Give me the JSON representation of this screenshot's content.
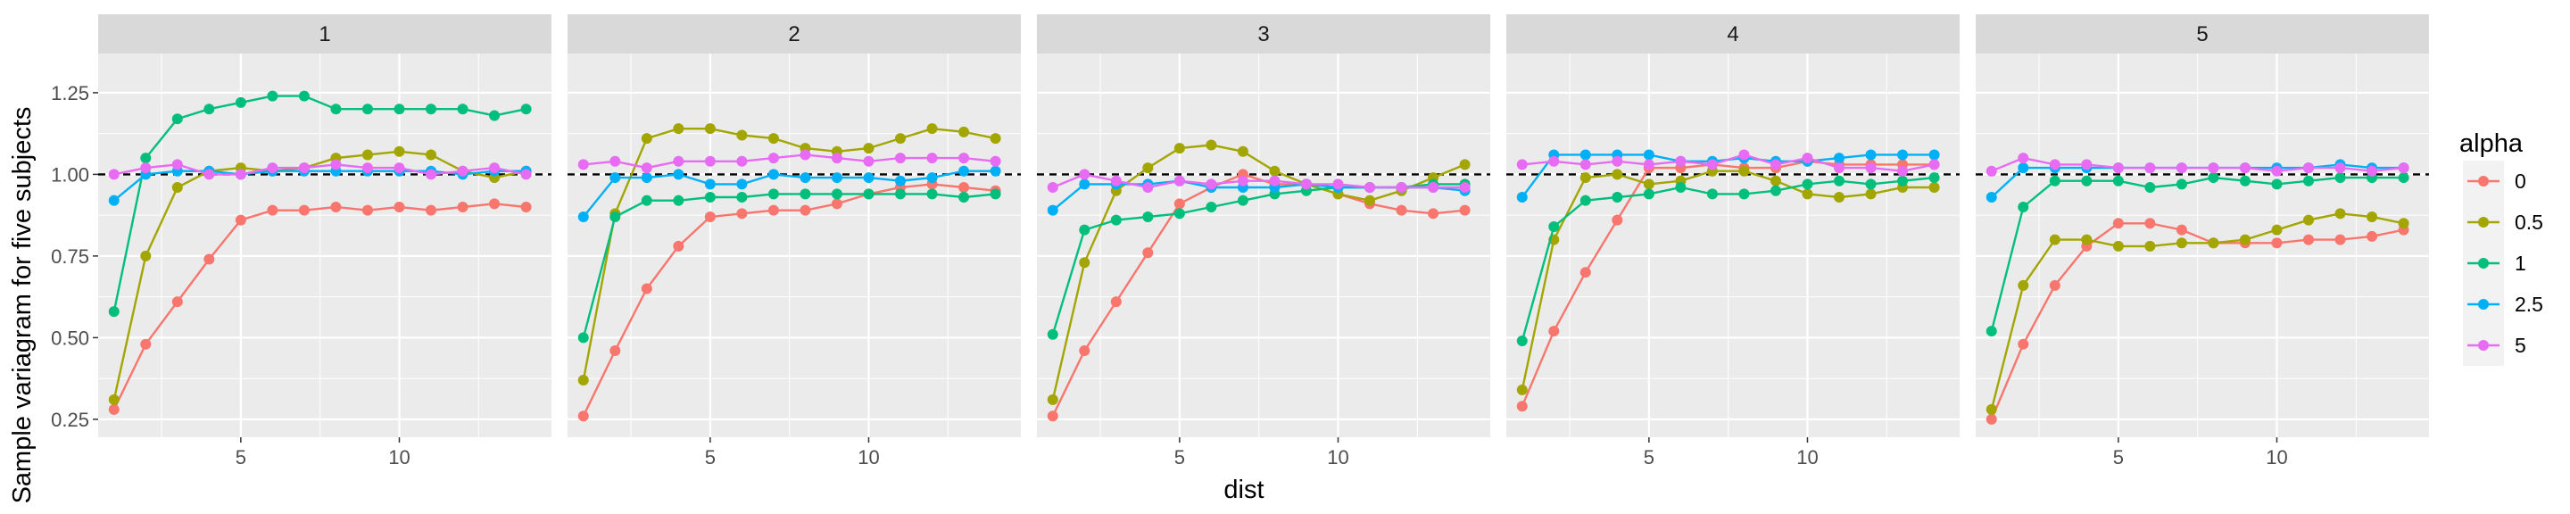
{
  "chart_data": {
    "type": "line",
    "ylabel": "Sample variagram for five subjects",
    "xlabel": "dist",
    "xlim": [
      0.5,
      14.8
    ],
    "ylim": [
      0.195,
      1.37
    ],
    "x_ticks": [
      5,
      10
    ],
    "y_ticks": [
      0.25,
      0.5,
      0.75,
      1.0
    ],
    "y_tick_labels": [
      "0.25",
      "0.50",
      "0.75",
      "1.00",
      "1.25"
    ],
    "y_ticks_full": [
      0.25,
      0.5,
      0.75,
      1.0,
      1.25
    ],
    "reference_line": {
      "y": 1.0,
      "style": "dashed"
    },
    "legend": {
      "title": "alpha",
      "position": "right"
    },
    "series_order": [
      "0",
      "0.5",
      "1",
      "2.5",
      "5"
    ],
    "colors": {
      "0": "#F8766D",
      "0.5": "#A3A500",
      "1": "#00BF7D",
      "2.5": "#00B0F6",
      "5": "#E76BF3"
    },
    "x": [
      1,
      2,
      3,
      4,
      5,
      6,
      7,
      8,
      9,
      10,
      11,
      12,
      13,
      14
    ],
    "panels": [
      {
        "label": "1",
        "series": [
          {
            "name": "0",
            "values": [
              0.28,
              0.48,
              0.61,
              0.74,
              0.86,
              0.89,
              0.89,
              0.9,
              0.89,
              0.9,
              0.89,
              0.9,
              0.91,
              0.9
            ]
          },
          {
            "name": "0.5",
            "values": [
              0.31,
              0.75,
              0.96,
              1.01,
              1.02,
              1.01,
              1.02,
              1.05,
              1.06,
              1.07,
              1.06,
              1.01,
              0.99,
              1.01
            ]
          },
          {
            "name": "1",
            "values": [
              0.58,
              1.05,
              1.17,
              1.2,
              1.22,
              1.24,
              1.24,
              1.2,
              1.2,
              1.2,
              1.2,
              1.2,
              1.18,
              1.2
            ]
          },
          {
            "name": "2.5",
            "values": [
              0.92,
              1.0,
              1.01,
              1.01,
              1.0,
              1.01,
              1.01,
              1.01,
              1.01,
              1.01,
              1.01,
              1.0,
              1.01,
              1.01
            ]
          },
          {
            "name": "5",
            "values": [
              1.0,
              1.02,
              1.03,
              1.0,
              1.0,
              1.02,
              1.02,
              1.03,
              1.02,
              1.02,
              1.0,
              1.01,
              1.02,
              1.0
            ]
          }
        ]
      },
      {
        "label": "2",
        "series": [
          {
            "name": "0",
            "values": [
              0.26,
              0.46,
              0.65,
              0.78,
              0.87,
              0.88,
              0.89,
              0.89,
              0.91,
              0.94,
              0.96,
              0.97,
              0.96,
              0.95
            ]
          },
          {
            "name": "0.5",
            "values": [
              0.37,
              0.88,
              1.11,
              1.14,
              1.14,
              1.12,
              1.11,
              1.08,
              1.07,
              1.08,
              1.11,
              1.14,
              1.13,
              1.11
            ]
          },
          {
            "name": "1",
            "values": [
              0.5,
              0.87,
              0.92,
              0.92,
              0.93,
              0.93,
              0.94,
              0.94,
              0.94,
              0.94,
              0.94,
              0.94,
              0.93,
              0.94
            ]
          },
          {
            "name": "2.5",
            "values": [
              0.87,
              0.99,
              0.99,
              1.0,
              0.97,
              0.97,
              1.0,
              0.99,
              0.99,
              0.99,
              0.98,
              0.99,
              1.01,
              1.01
            ]
          },
          {
            "name": "5",
            "values": [
              1.03,
              1.04,
              1.02,
              1.04,
              1.04,
              1.04,
              1.05,
              1.06,
              1.05,
              1.04,
              1.05,
              1.05,
              1.05,
              1.04
            ]
          }
        ]
      },
      {
        "label": "3",
        "series": [
          {
            "name": "0",
            "values": [
              0.26,
              0.46,
              0.61,
              0.76,
              0.91,
              0.96,
              1.0,
              0.97,
              0.97,
              0.94,
              0.91,
              0.89,
              0.88,
              0.89
            ]
          },
          {
            "name": "0.5",
            "values": [
              0.31,
              0.73,
              0.95,
              1.02,
              1.08,
              1.09,
              1.07,
              1.01,
              0.97,
              0.94,
              0.92,
              0.95,
              0.99,
              1.03
            ]
          },
          {
            "name": "1",
            "values": [
              0.51,
              0.83,
              0.86,
              0.87,
              0.88,
              0.9,
              0.92,
              0.94,
              0.95,
              0.96,
              0.96,
              0.96,
              0.97,
              0.97
            ]
          },
          {
            "name": "2.5",
            "values": [
              0.89,
              0.97,
              0.97,
              0.97,
              0.98,
              0.96,
              0.96,
              0.96,
              0.97,
              0.96,
              0.96,
              0.96,
              0.96,
              0.95
            ]
          },
          {
            "name": "5",
            "values": [
              0.96,
              1.0,
              0.98,
              0.96,
              0.98,
              0.97,
              0.98,
              0.98,
              0.97,
              0.97,
              0.96,
              0.96,
              0.96,
              0.96
            ]
          }
        ]
      },
      {
        "label": "4",
        "series": [
          {
            "name": "0",
            "values": [
              0.29,
              0.52,
              0.7,
              0.86,
              1.02,
              1.02,
              1.03,
              1.02,
              1.02,
              1.04,
              1.03,
              1.03,
              1.03,
              1.03
            ]
          },
          {
            "name": "0.5",
            "values": [
              0.34,
              0.8,
              0.99,
              1.0,
              0.97,
              0.98,
              1.01,
              1.01,
              0.98,
              0.94,
              0.93,
              0.94,
              0.96,
              0.96
            ]
          },
          {
            "name": "1",
            "values": [
              0.49,
              0.84,
              0.92,
              0.93,
              0.94,
              0.96,
              0.94,
              0.94,
              0.95,
              0.97,
              0.98,
              0.97,
              0.98,
              0.99
            ]
          },
          {
            "name": "2.5",
            "values": [
              0.93,
              1.06,
              1.06,
              1.06,
              1.06,
              1.04,
              1.04,
              1.05,
              1.04,
              1.04,
              1.05,
              1.06,
              1.06,
              1.06
            ]
          },
          {
            "name": "5",
            "values": [
              1.03,
              1.04,
              1.03,
              1.04,
              1.03,
              1.04,
              1.03,
              1.06,
              1.03,
              1.05,
              1.02,
              1.02,
              1.01,
              1.03
            ]
          }
        ]
      },
      {
        "label": "5",
        "series": [
          {
            "name": "0",
            "values": [
              0.25,
              0.48,
              0.66,
              0.78,
              0.85,
              0.85,
              0.83,
              0.79,
              0.79,
              0.79,
              0.8,
              0.8,
              0.81,
              0.83
            ]
          },
          {
            "name": "0.5",
            "values": [
              0.28,
              0.66,
              0.8,
              0.8,
              0.78,
              0.78,
              0.79,
              0.79,
              0.8,
              0.83,
              0.86,
              0.88,
              0.87,
              0.85
            ]
          },
          {
            "name": "1",
            "values": [
              0.52,
              0.9,
              0.98,
              0.98,
              0.98,
              0.96,
              0.97,
              0.99,
              0.98,
              0.97,
              0.98,
              0.99,
              0.99,
              0.99
            ]
          },
          {
            "name": "2.5",
            "values": [
              0.93,
              1.02,
              1.02,
              1.02,
              1.02,
              1.02,
              1.02,
              1.02,
              1.02,
              1.02,
              1.02,
              1.03,
              1.02,
              1.02
            ]
          },
          {
            "name": "5",
            "values": [
              1.01,
              1.05,
              1.03,
              1.03,
              1.02,
              1.02,
              1.02,
              1.02,
              1.02,
              1.01,
              1.02,
              1.02,
              1.01,
              1.02
            ]
          }
        ]
      }
    ]
  }
}
